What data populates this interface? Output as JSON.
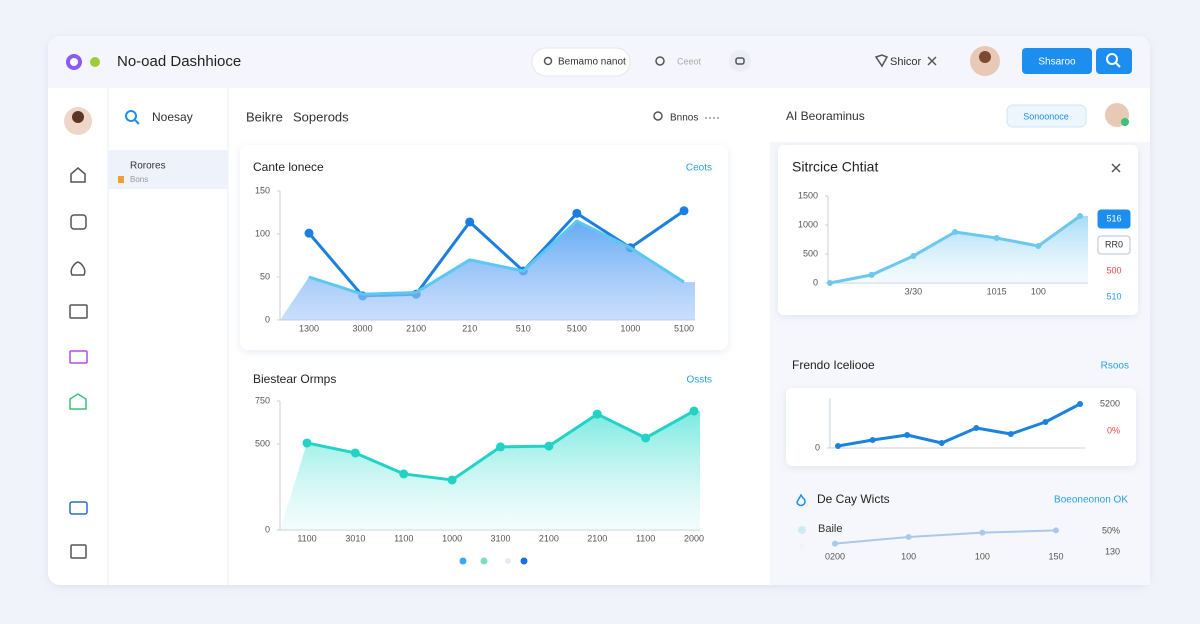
{
  "header": {
    "title": "No-oad Dashhioce",
    "search": "Bemamo nanot",
    "search2": "Ceeot",
    "user": "Shicor",
    "button": "Shsaroo"
  },
  "sidebar": {
    "search": "Noesay",
    "item": "Rorores",
    "subitem": "Bons"
  },
  "main": {
    "tab1": "Beikre",
    "tab2": "Soperods",
    "filter": "Bnnos"
  },
  "right": {
    "title": "AI Beoraminus",
    "button": "Sonoonoce"
  },
  "chart_data": [
    {
      "type": "line",
      "title": "Cante lonece",
      "link": "Ceots",
      "categories": [
        "1300",
        "3000",
        "2100",
        "210",
        "510",
        "5100",
        "1000",
        "5100"
      ],
      "ylim": [
        0,
        150
      ],
      "yticks": [
        0,
        50,
        100,
        150
      ],
      "series": [
        {
          "color": "#1a7fe0",
          "markers": true,
          "values": [
            101,
            28,
            30,
            114,
            57,
            124,
            84,
            127
          ]
        },
        {
          "color": "#5ac8f0",
          "area": true,
          "values": [
            50,
            30,
            32,
            70,
            57,
            115,
            84,
            44
          ]
        }
      ]
    },
    {
      "type": "area",
      "title": "Biestear Ormps",
      "link": "Ossts",
      "categories": [
        "1100",
        "3010",
        "1100",
        "1000",
        "3100",
        "2100",
        "2100",
        "1100",
        "2000"
      ],
      "ylim": [
        0,
        750
      ],
      "yticks": [
        0,
        500,
        750
      ],
      "series": [
        {
          "color": "#22d3c5",
          "area": true,
          "markers": true,
          "values": [
            506,
            448,
            326,
            291,
            483,
            488,
            674,
            535,
            692
          ]
        }
      ]
    },
    {
      "type": "area",
      "title": "Sitrcice Chtiat",
      "categories": [
        null,
        null,
        "3/30",
        null,
        "1015",
        "100",
        null
      ],
      "ylim": [
        0,
        1500
      ],
      "yticks": [
        0,
        500,
        1000,
        1500
      ],
      "legend": [
        "516",
        "RR0",
        "500",
        "510"
      ],
      "series": [
        {
          "color": "#6cc8ee",
          "area": true,
          "markers": true,
          "values": [
            0,
            140,
            466,
            879,
            776,
            638,
            1155
          ]
        }
      ]
    },
    {
      "type": "line",
      "title": "Frendo Iceliooe",
      "link": "Rsoos",
      "categories": [
        null,
        null,
        null,
        null,
        null,
        null,
        null,
        null
      ],
      "ylim": [
        0,
        100
      ],
      "yticks": [
        0
      ],
      "annotations": [
        "5200",
        "0%"
      ],
      "series": [
        {
          "color": "#1b82e0",
          "markers": true,
          "values": [
            4,
            16,
            26,
            10,
            40,
            28,
            52,
            88
          ]
        }
      ]
    },
    {
      "type": "line",
      "title": "De Cay Wicts",
      "link": "Boeoneonon OK",
      "row_label": "Baile",
      "categories": [
        "0200",
        "100",
        "100",
        "150"
      ],
      "ylim": [
        0,
        10
      ],
      "annotations": [
        "50%",
        "130"
      ],
      "series": [
        {
          "color": "#a9c9ec",
          "markers": true,
          "values": [
            2,
            5,
            7,
            8
          ]
        }
      ]
    }
  ]
}
